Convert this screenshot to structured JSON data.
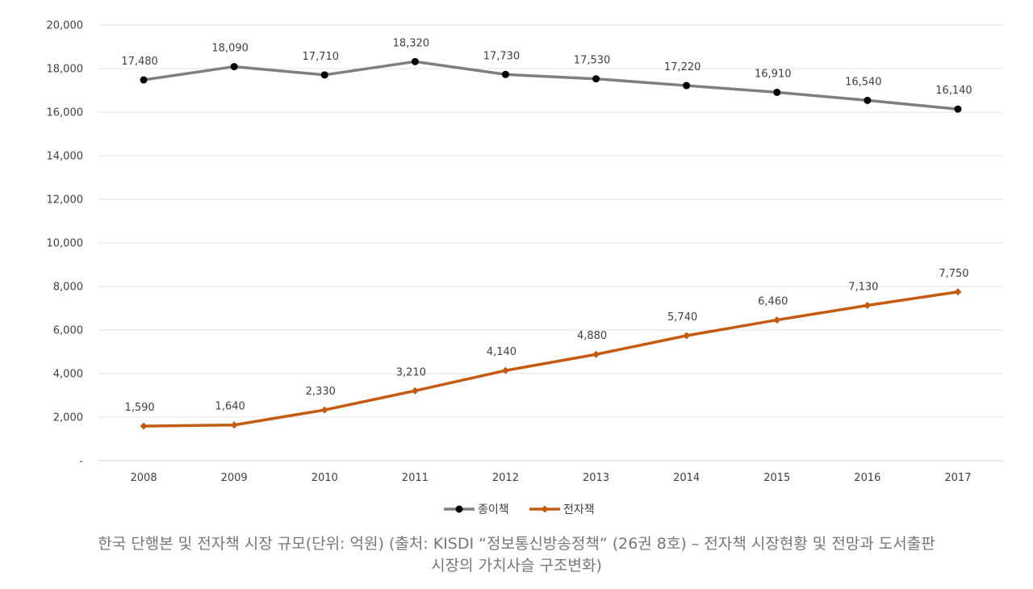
{
  "chart_data": {
    "type": "line",
    "categories": [
      "2008",
      "2009",
      "2010",
      "2011",
      "2012",
      "2013",
      "2014",
      "2015",
      "2016",
      "2017"
    ],
    "series": [
      {
        "name": "종이책",
        "values": [
          17480,
          18090,
          17710,
          18320,
          17730,
          17530,
          17220,
          16910,
          16540,
          16140
        ],
        "labels": [
          "17,480",
          "18,090",
          "17,710",
          "18,320",
          "17,730",
          "17,530",
          "17,220",
          "16,910",
          "16,540",
          "16,140"
        ],
        "color": "#7f7f7f",
        "marker_color": "#000000",
        "marker": "circle"
      },
      {
        "name": "전자책",
        "values": [
          1590,
          1640,
          2330,
          3210,
          4140,
          4880,
          5740,
          6460,
          7130,
          7750
        ],
        "labels": [
          "1,590",
          "1,640",
          "2,330",
          "3,210",
          "4,140",
          "4,880",
          "5,740",
          "6,460",
          "7,130",
          "7,750"
        ],
        "color": "#c55a11",
        "marker_color": "#c55a11",
        "marker": "diamond"
      }
    ],
    "yticks": [
      0,
      2000,
      4000,
      6000,
      8000,
      10000,
      12000,
      14000,
      16000,
      18000,
      20000
    ],
    "ytick_labels": [
      "-",
      "2,000",
      "4,000",
      "6,000",
      "8,000",
      "10,000",
      "12,000",
      "14,000",
      "16,000",
      "18,000",
      "20,000"
    ],
    "ylim": [
      0,
      20000
    ],
    "grid": true,
    "legend_position": "bottom"
  },
  "caption": {
    "line1": "한국 단행본 및 전자책 시장 규모(단위: 억원) (출처: KISDI “정보통신방송정책” (26권 8호) – 전자책 시장현황 및 전망과 도서출판",
    "line2": "시장의 가치사슬 구조변화)"
  }
}
